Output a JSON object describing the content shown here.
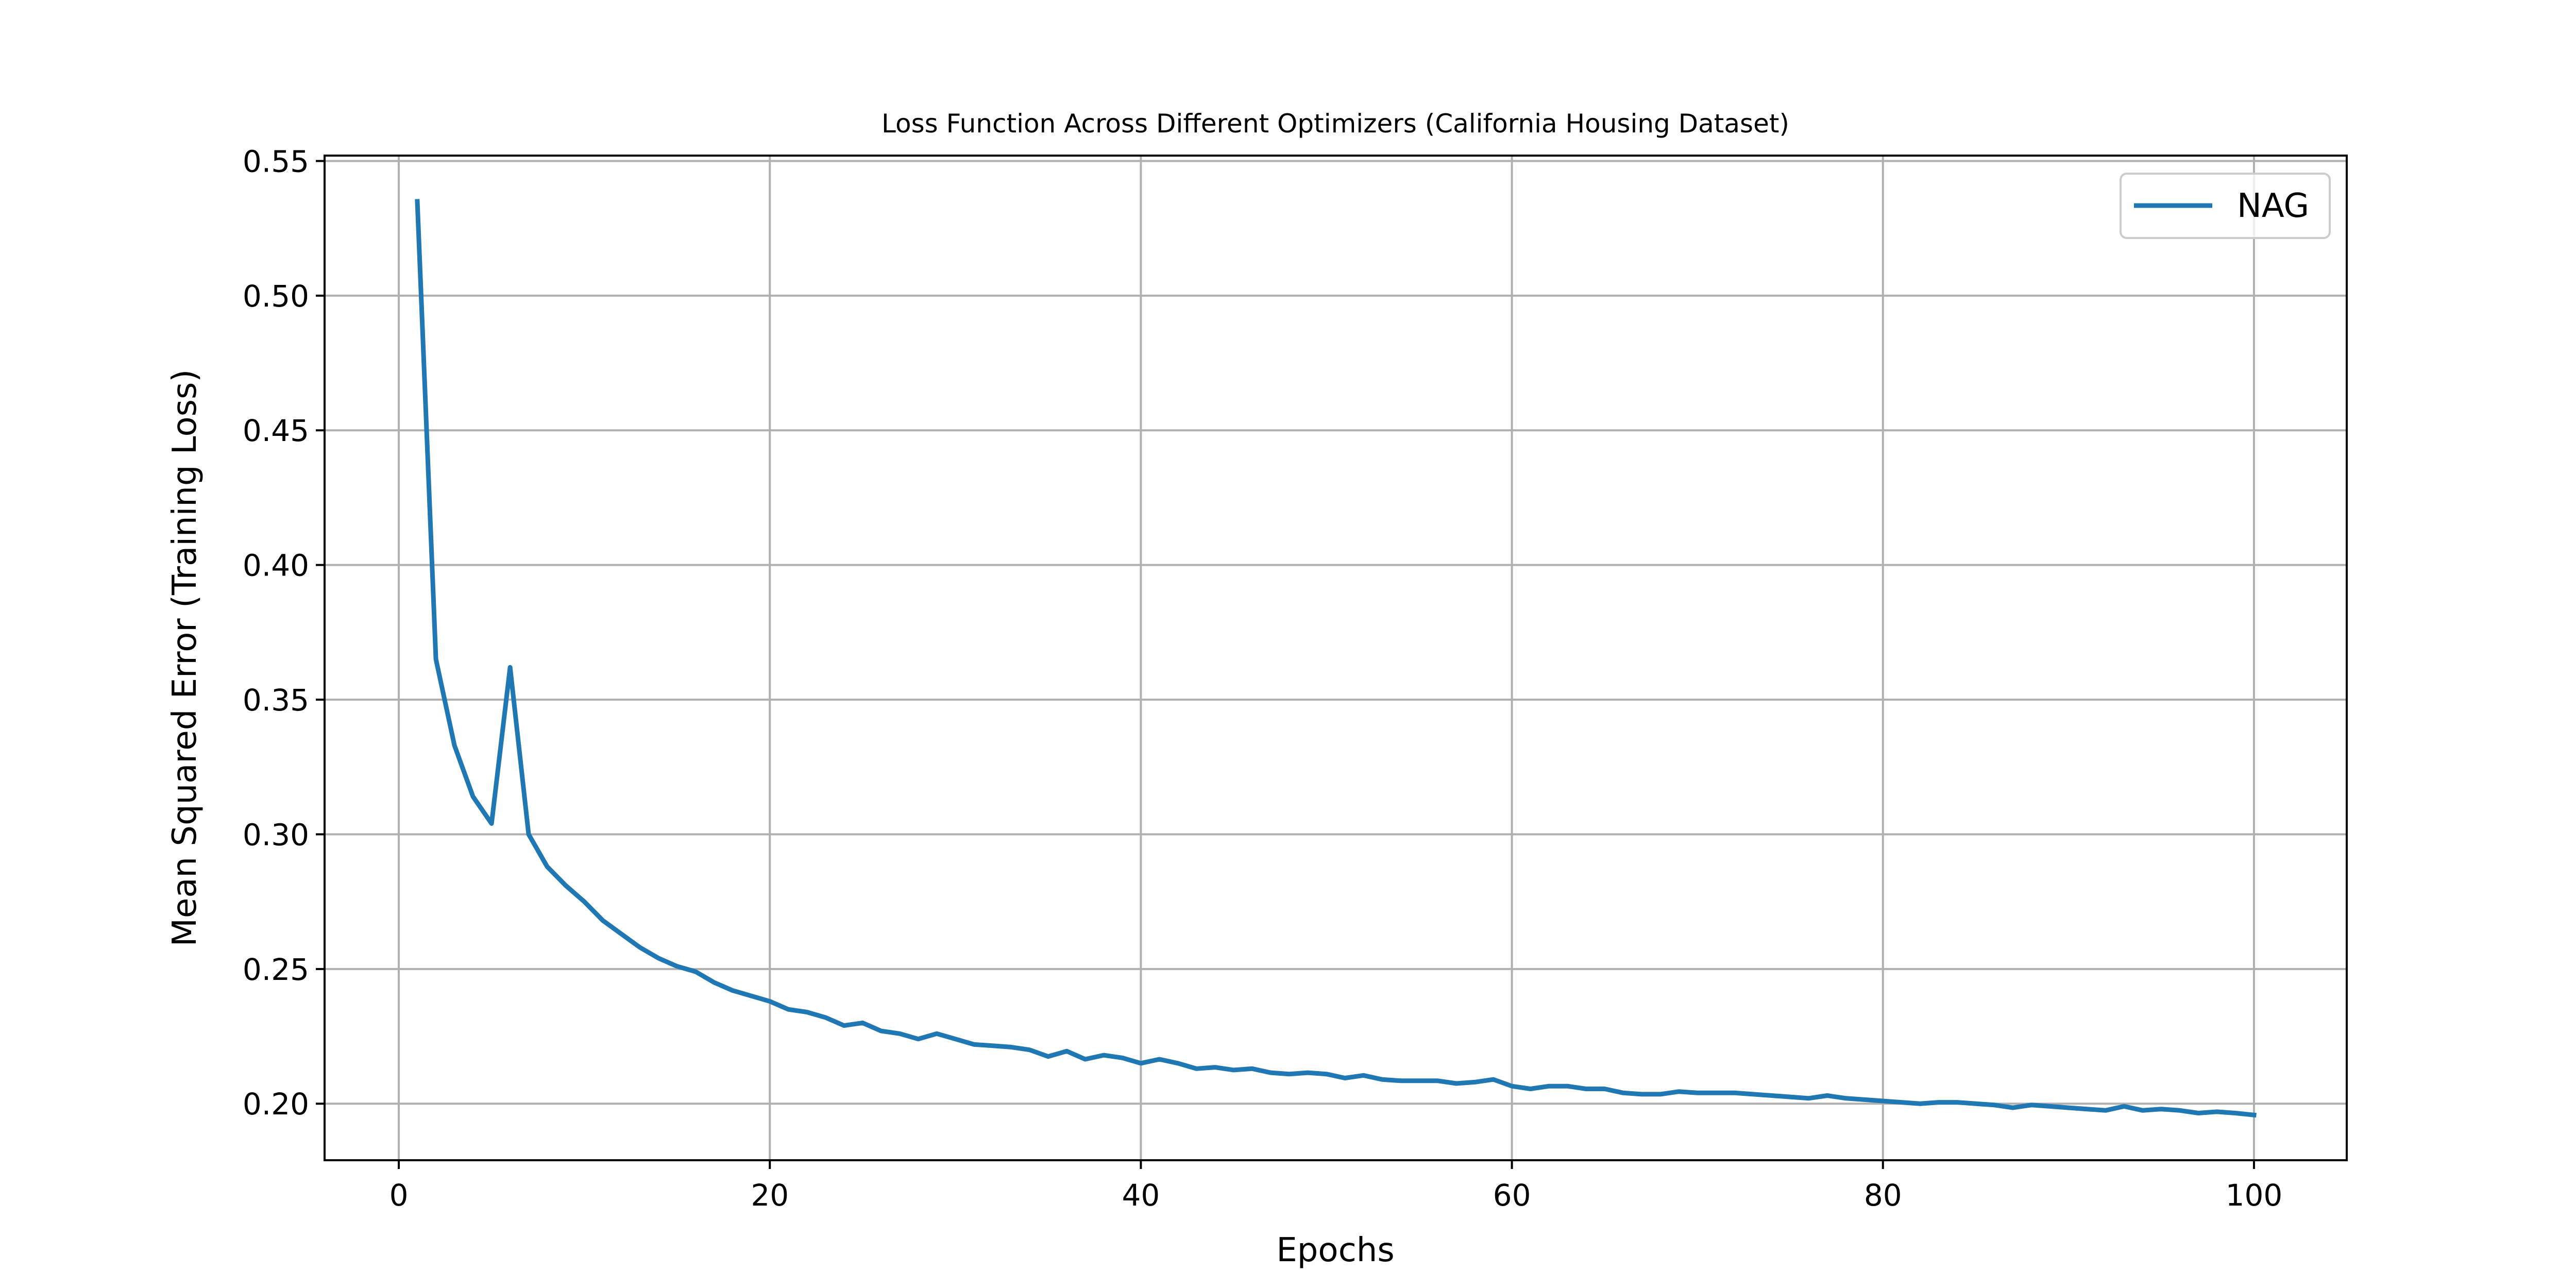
{
  "chart_data": {
    "type": "line",
    "title": "Loss Function Across Different Optimizers (California Housing Dataset)",
    "xlabel": "Epochs",
    "ylabel": "Mean Squared Error (Training Loss)",
    "xlim": [
      -4,
      105
    ],
    "ylim": [
      0.179,
      0.552
    ],
    "xticks": [
      0,
      20,
      40,
      60,
      80,
      100
    ],
    "yticks": [
      0.2,
      0.25,
      0.3,
      0.35,
      0.4,
      0.45,
      0.5,
      0.55
    ],
    "xtick_labels": [
      "0",
      "20",
      "40",
      "60",
      "80",
      "100"
    ],
    "ytick_labels": [
      "0.20",
      "0.25",
      "0.30",
      "0.35",
      "0.40",
      "0.45",
      "0.50",
      "0.55"
    ],
    "grid": true,
    "legend": "top-right",
    "series": [
      {
        "name": "NAG",
        "color": "#1f77b4",
        "x": [
          1,
          2,
          3,
          4,
          5,
          6,
          7,
          8,
          9,
          10,
          11,
          12,
          13,
          14,
          15,
          16,
          17,
          18,
          19,
          20,
          21,
          22,
          23,
          24,
          25,
          26,
          27,
          28,
          29,
          30,
          31,
          32,
          33,
          34,
          35,
          36,
          37,
          38,
          39,
          40,
          41,
          42,
          43,
          44,
          45,
          46,
          47,
          48,
          49,
          50,
          51,
          52,
          53,
          54,
          55,
          56,
          57,
          58,
          59,
          60,
          61,
          62,
          63,
          64,
          65,
          66,
          67,
          68,
          69,
          70,
          71,
          72,
          73,
          74,
          75,
          76,
          77,
          78,
          79,
          80,
          81,
          82,
          83,
          84,
          85,
          86,
          87,
          88,
          89,
          90,
          91,
          92,
          93,
          94,
          95,
          96,
          97,
          98,
          99,
          100
        ],
        "values": [
          0.535,
          0.365,
          0.333,
          0.314,
          0.304,
          0.362,
          0.3,
          0.288,
          0.281,
          0.275,
          0.268,
          0.263,
          0.258,
          0.254,
          0.251,
          0.249,
          0.245,
          0.242,
          0.24,
          0.238,
          0.235,
          0.234,
          0.232,
          0.229,
          0.23,
          0.227,
          0.226,
          0.224,
          0.226,
          0.224,
          0.222,
          0.2215,
          0.221,
          0.22,
          0.2175,
          0.2195,
          0.2165,
          0.218,
          0.217,
          0.215,
          0.2165,
          0.215,
          0.213,
          0.2135,
          0.2125,
          0.213,
          0.2115,
          0.211,
          0.2115,
          0.211,
          0.2095,
          0.2105,
          0.209,
          0.2085,
          0.2085,
          0.2085,
          0.2075,
          0.208,
          0.209,
          0.2065,
          0.2055,
          0.2065,
          0.2065,
          0.2055,
          0.2055,
          0.204,
          0.2035,
          0.2035,
          0.2045,
          0.204,
          0.204,
          0.204,
          0.2035,
          0.203,
          0.2025,
          0.202,
          0.203,
          0.202,
          0.2015,
          0.201,
          0.2005,
          0.2,
          0.2005,
          0.2005,
          0.2,
          0.1995,
          0.1985,
          0.1995,
          0.199,
          0.1985,
          0.198,
          0.1975,
          0.199,
          0.1975,
          0.198,
          0.1975,
          0.1965,
          0.197,
          0.1965,
          0.1958
        ]
      }
    ]
  }
}
